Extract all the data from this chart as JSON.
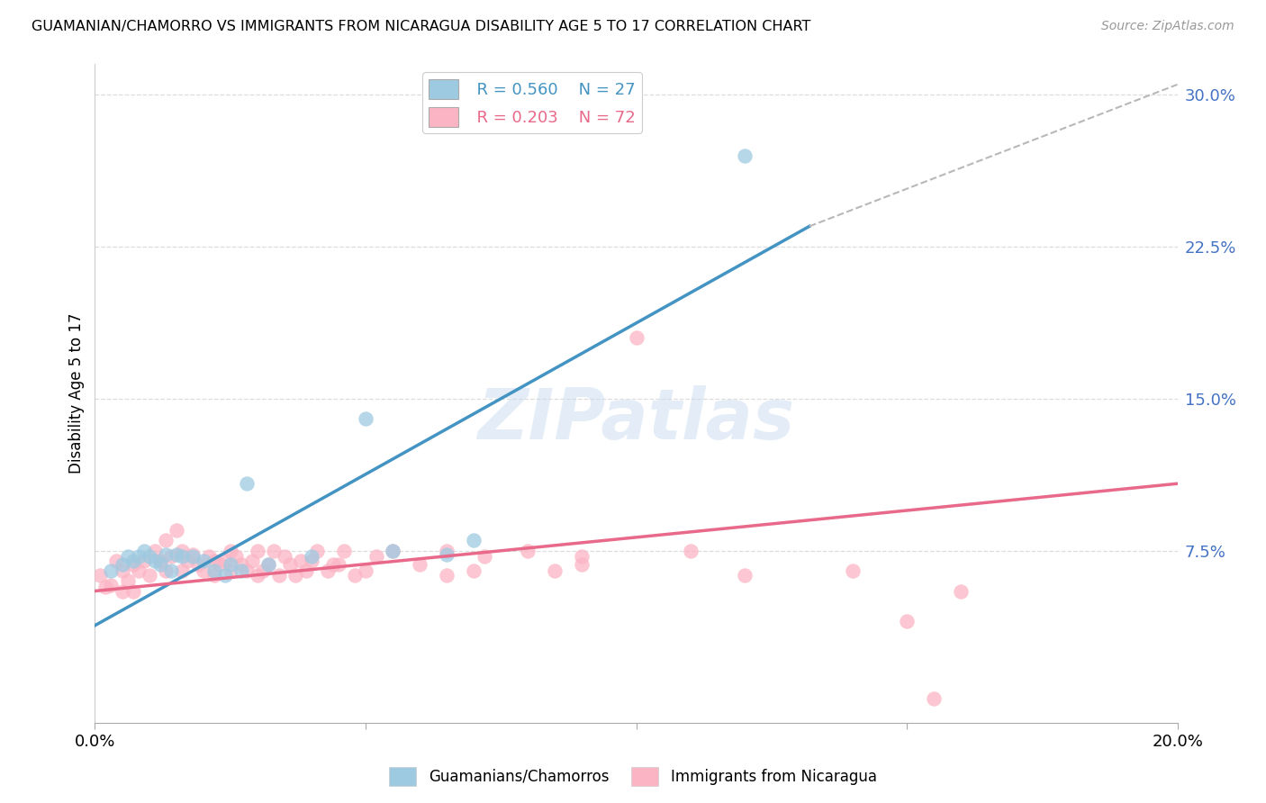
{
  "title": "GUAMANIAN/CHAMORRO VS IMMIGRANTS FROM NICARAGUA DISABILITY AGE 5 TO 17 CORRELATION CHART",
  "source": "Source: ZipAtlas.com",
  "ylabel": "Disability Age 5 to 17",
  "xmin": 0.0,
  "xmax": 0.2,
  "ymin": -0.01,
  "ymax": 0.315,
  "yticks": [
    0.075,
    0.15,
    0.225,
    0.3
  ],
  "ytick_labels": [
    "7.5%",
    "15.0%",
    "22.5%",
    "30.0%"
  ],
  "xticks": [
    0.0,
    0.05,
    0.1,
    0.15,
    0.2
  ],
  "xtick_labels": [
    "0.0%",
    "",
    "",
    "",
    "20.0%"
  ],
  "legend_r1": "R = 0.560",
  "legend_n1": "N = 27",
  "legend_r2": "R = 0.203",
  "legend_n2": "N = 72",
  "blue_color": "#9ecae1",
  "pink_color": "#fbb4c4",
  "blue_line_color": "#4393c3",
  "pink_line_color": "#e8698a",
  "dashed_line_color": "#b8b8b8",
  "watermark": "ZIPatlas",
  "blue_scatter_x": [
    0.003,
    0.005,
    0.006,
    0.007,
    0.008,
    0.009,
    0.01,
    0.011,
    0.012,
    0.013,
    0.014,
    0.015,
    0.016,
    0.018,
    0.02,
    0.022,
    0.024,
    0.025,
    0.027,
    0.028,
    0.032,
    0.04,
    0.05,
    0.055,
    0.065,
    0.07,
    0.12
  ],
  "blue_scatter_y": [
    0.065,
    0.068,
    0.072,
    0.07,
    0.072,
    0.075,
    0.072,
    0.07,
    0.068,
    0.073,
    0.065,
    0.073,
    0.072,
    0.072,
    0.07,
    0.065,
    0.063,
    0.068,
    0.065,
    0.108,
    0.068,
    0.072,
    0.14,
    0.075,
    0.073,
    0.08,
    0.27
  ],
  "pink_scatter_x": [
    0.001,
    0.002,
    0.003,
    0.004,
    0.005,
    0.005,
    0.006,
    0.007,
    0.007,
    0.008,
    0.009,
    0.01,
    0.011,
    0.012,
    0.013,
    0.013,
    0.014,
    0.015,
    0.016,
    0.016,
    0.017,
    0.018,
    0.019,
    0.02,
    0.021,
    0.022,
    0.022,
    0.023,
    0.024,
    0.025,
    0.025,
    0.026,
    0.027,
    0.028,
    0.029,
    0.03,
    0.03,
    0.031,
    0.032,
    0.033,
    0.034,
    0.035,
    0.036,
    0.037,
    0.038,
    0.039,
    0.04,
    0.041,
    0.043,
    0.044,
    0.045,
    0.046,
    0.048,
    0.05,
    0.052,
    0.055,
    0.06,
    0.065,
    0.065,
    0.07,
    0.072,
    0.08,
    0.085,
    0.09,
    0.09,
    0.1,
    0.11,
    0.12,
    0.14,
    0.15,
    0.155,
    0.16
  ],
  "pink_scatter_y": [
    0.063,
    0.057,
    0.058,
    0.07,
    0.065,
    0.055,
    0.06,
    0.068,
    0.055,
    0.065,
    0.07,
    0.063,
    0.075,
    0.07,
    0.065,
    0.08,
    0.072,
    0.085,
    0.075,
    0.065,
    0.07,
    0.073,
    0.068,
    0.065,
    0.072,
    0.07,
    0.063,
    0.068,
    0.07,
    0.075,
    0.065,
    0.072,
    0.068,
    0.065,
    0.07,
    0.075,
    0.063,
    0.065,
    0.068,
    0.075,
    0.063,
    0.072,
    0.068,
    0.063,
    0.07,
    0.065,
    0.07,
    0.075,
    0.065,
    0.068,
    0.068,
    0.075,
    0.063,
    0.065,
    0.072,
    0.075,
    0.068,
    0.075,
    0.063,
    0.065,
    0.072,
    0.075,
    0.065,
    0.072,
    0.068,
    0.18,
    0.075,
    0.063,
    0.065,
    0.04,
    0.002,
    0.055
  ],
  "blue_line_x": [
    0.0,
    0.132
  ],
  "blue_line_y": [
    0.038,
    0.235
  ],
  "pink_line_x": [
    0.0,
    0.2
  ],
  "pink_line_y": [
    0.055,
    0.108
  ],
  "dashed_line_x": [
    0.132,
    0.2
  ],
  "dashed_line_y": [
    0.235,
    0.305
  ]
}
